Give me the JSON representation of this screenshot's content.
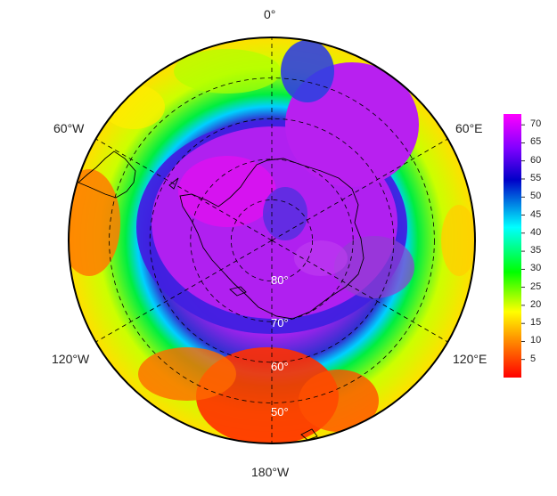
{
  "map": {
    "projection": "south-polar-stereographic",
    "longitude_labels": {
      "top": "0°",
      "upper_left": "60°W",
      "upper_right": "60°E",
      "lower_left": "120°W",
      "lower_right": "120°E",
      "bottom": "180°W"
    },
    "latitude_labels": [
      "80°",
      "70°",
      "60°",
      "50°"
    ],
    "graticule": {
      "latitudes": [
        80,
        70,
        60,
        50
      ],
      "meridians_every_deg": 60,
      "style": "dashed"
    },
    "field_description_colors": {
      "palette": [
        "#ff0000",
        "#ff8000",
        "#ffff00",
        "#00ff00",
        "#00ffff",
        "#0000c8",
        "#ff00ff"
      ]
    }
  },
  "colorbar": {
    "ticks": [
      "70",
      "65",
      "60",
      "55",
      "50",
      "45",
      "40",
      "35",
      "30",
      "25",
      "20",
      "15",
      "10",
      "5"
    ],
    "min": 0,
    "max": 73
  }
}
